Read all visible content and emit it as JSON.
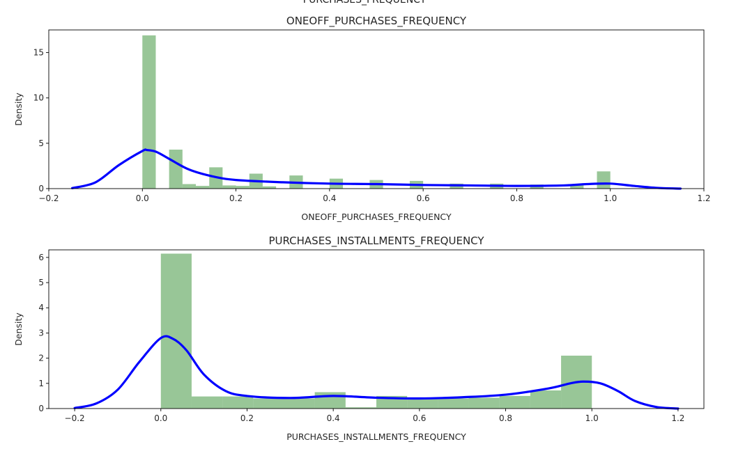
{
  "page": {
    "cut_title": "PURCHASES_FREQUENCY"
  },
  "colors": {
    "bar": "#4e9c4b",
    "kde": "#0000ff",
    "axes": "#000000"
  },
  "chart_data": [
    {
      "type": "bar",
      "title": "ONEOFF_PURCHASES_FREQUENCY",
      "xlabel": "ONEOFF_PURCHASES_FREQUENCY",
      "ylabel": "Density",
      "xlim": [
        -0.2,
        1.2
      ],
      "ylim": [
        0,
        17.5
      ],
      "xticks": [
        -0.2,
        0.0,
        0.2,
        0.4,
        0.6,
        0.8,
        1.0,
        1.2
      ],
      "xticklabels": [
        "−0.2",
        "0.0",
        "0.2",
        "0.4",
        "0.6",
        "0.8",
        "1.0",
        "1.2"
      ],
      "yticks": [
        0,
        5,
        10,
        15
      ],
      "yticklabels": [
        "0",
        "5",
        "10",
        "15"
      ],
      "grid": false,
      "series": [
        {
          "kind": "histogram",
          "bins": [
            {
              "x0": 0.0,
              "x1": 0.0286,
              "y": 16.9
            },
            {
              "x0": 0.0286,
              "x1": 0.0571,
              "y": 0.0
            },
            {
              "x0": 0.0571,
              "x1": 0.0857,
              "y": 4.3
            },
            {
              "x0": 0.0857,
              "x1": 0.1143,
              "y": 0.5
            },
            {
              "x0": 0.1143,
              "x1": 0.1429,
              "y": 0.3
            },
            {
              "x0": 0.1429,
              "x1": 0.1714,
              "y": 2.35
            },
            {
              "x0": 0.1714,
              "x1": 0.2,
              "y": 0.35
            },
            {
              "x0": 0.2,
              "x1": 0.2286,
              "y": 0.3
            },
            {
              "x0": 0.2286,
              "x1": 0.2571,
              "y": 1.65
            },
            {
              "x0": 0.2571,
              "x1": 0.2857,
              "y": 0.25
            },
            {
              "x0": 0.3143,
              "x1": 0.3429,
              "y": 1.45
            },
            {
              "x0": 0.4,
              "x1": 0.4286,
              "y": 1.1
            },
            {
              "x0": 0.4857,
              "x1": 0.5143,
              "y": 0.95
            },
            {
              "x0": 0.5714,
              "x1": 0.6,
              "y": 0.85
            },
            {
              "x0": 0.6571,
              "x1": 0.6857,
              "y": 0.55
            },
            {
              "x0": 0.7429,
              "x1": 0.7714,
              "y": 0.55
            },
            {
              "x0": 0.8286,
              "x1": 0.8571,
              "y": 0.45
            },
            {
              "x0": 0.9143,
              "x1": 0.9429,
              "y": 0.45
            },
            {
              "x0": 0.9714,
              "x1": 1.0,
              "y": 1.9
            }
          ]
        },
        {
          "kind": "kde",
          "x": [
            -0.15,
            -0.1,
            -0.05,
            0.0,
            0.01,
            0.03,
            0.06,
            0.1,
            0.15,
            0.2,
            0.3,
            0.4,
            0.5,
            0.6,
            0.7,
            0.8,
            0.9,
            0.95,
            1.0,
            1.05,
            1.1,
            1.15
          ],
          "y": [
            0.05,
            0.7,
            2.6,
            4.15,
            4.25,
            4.05,
            3.2,
            2.1,
            1.35,
            0.95,
            0.7,
            0.55,
            0.5,
            0.4,
            0.35,
            0.3,
            0.35,
            0.5,
            0.55,
            0.3,
            0.08,
            0.0
          ]
        }
      ]
    },
    {
      "type": "bar",
      "title": "PURCHASES_INSTALLMENTS_FREQUENCY",
      "xlabel": "PURCHASES_INSTALLMENTS_FREQUENCY",
      "ylabel": "Density",
      "xlim": [
        -0.26,
        1.26
      ],
      "ylim": [
        0,
        6.3
      ],
      "xticks": [
        -0.2,
        0.0,
        0.2,
        0.4,
        0.6,
        0.8,
        1.0,
        1.2
      ],
      "xticklabels": [
        "−0.2",
        "0.0",
        "0.2",
        "0.4",
        "0.6",
        "0.8",
        "1.0",
        "1.2"
      ],
      "yticks": [
        0,
        1,
        2,
        3,
        4,
        5,
        6
      ],
      "yticklabels": [
        "0",
        "1",
        "2",
        "3",
        "4",
        "5",
        "6"
      ],
      "grid": false,
      "series": [
        {
          "kind": "histogram",
          "bins": [
            {
              "x0": 0.0,
              "x1": 0.0714,
              "y": 6.15
            },
            {
              "x0": 0.0714,
              "x1": 0.1429,
              "y": 0.48
            },
            {
              "x0": 0.1429,
              "x1": 0.2143,
              "y": 0.48
            },
            {
              "x0": 0.2143,
              "x1": 0.2857,
              "y": 0.4
            },
            {
              "x0": 0.2857,
              "x1": 0.3571,
              "y": 0.4
            },
            {
              "x0": 0.3571,
              "x1": 0.4286,
              "y": 0.65
            },
            {
              "x0": 0.4286,
              "x1": 0.5,
              "y": 0.05
            },
            {
              "x0": 0.5,
              "x1": 0.5714,
              "y": 0.5
            },
            {
              "x0": 0.5714,
              "x1": 0.6429,
              "y": 0.4
            },
            {
              "x0": 0.6429,
              "x1": 0.7143,
              "y": 0.4
            },
            {
              "x0": 0.7143,
              "x1": 0.7857,
              "y": 0.43
            },
            {
              "x0": 0.7857,
              "x1": 0.8571,
              "y": 0.5
            },
            {
              "x0": 0.8571,
              "x1": 0.9286,
              "y": 0.72
            },
            {
              "x0": 0.9286,
              "x1": 1.0,
              "y": 2.1
            }
          ]
        },
        {
          "kind": "kde",
          "x": [
            -0.2,
            -0.15,
            -0.1,
            -0.05,
            0.0,
            0.03,
            0.06,
            0.1,
            0.15,
            0.2,
            0.3,
            0.4,
            0.5,
            0.6,
            0.7,
            0.8,
            0.9,
            0.95,
            0.98,
            1.02,
            1.06,
            1.1,
            1.15,
            1.2
          ],
          "y": [
            0.02,
            0.2,
            0.75,
            1.85,
            2.8,
            2.75,
            2.3,
            1.35,
            0.7,
            0.5,
            0.42,
            0.5,
            0.43,
            0.4,
            0.45,
            0.55,
            0.8,
            1.0,
            1.07,
            1.0,
            0.7,
            0.3,
            0.06,
            0.0
          ]
        }
      ]
    }
  ]
}
